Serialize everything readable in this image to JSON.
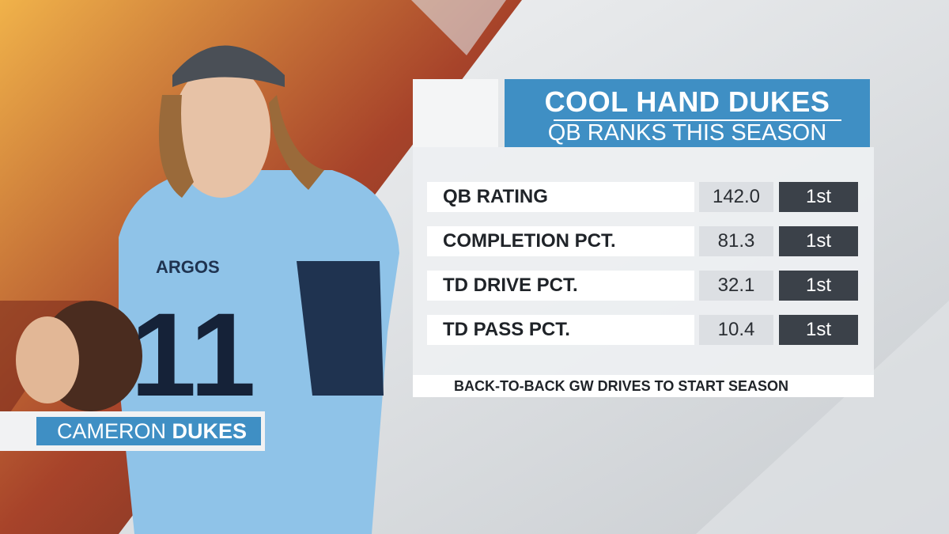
{
  "header": {
    "title": "COOL HAND DUKES",
    "subtitle": "QB RANKS THIS SEASON"
  },
  "table": {
    "rows": [
      [
        "QB RATING",
        "142.0",
        "1st"
      ],
      [
        "COMPLETION PCT.",
        "81.3",
        "1st"
      ],
      [
        "TD DRIVE PCT.",
        "32.1",
        "1st"
      ],
      [
        "TD PASS PCT.",
        "10.4",
        "1st"
      ]
    ]
  },
  "footnote": "BACK-TO-BACK GW DRIVES TO START SEASON",
  "name_plate": {
    "first": "CAMERON",
    "last": "DUKES"
  },
  "jersey": {
    "team": "ARGOS",
    "number": "11"
  }
}
